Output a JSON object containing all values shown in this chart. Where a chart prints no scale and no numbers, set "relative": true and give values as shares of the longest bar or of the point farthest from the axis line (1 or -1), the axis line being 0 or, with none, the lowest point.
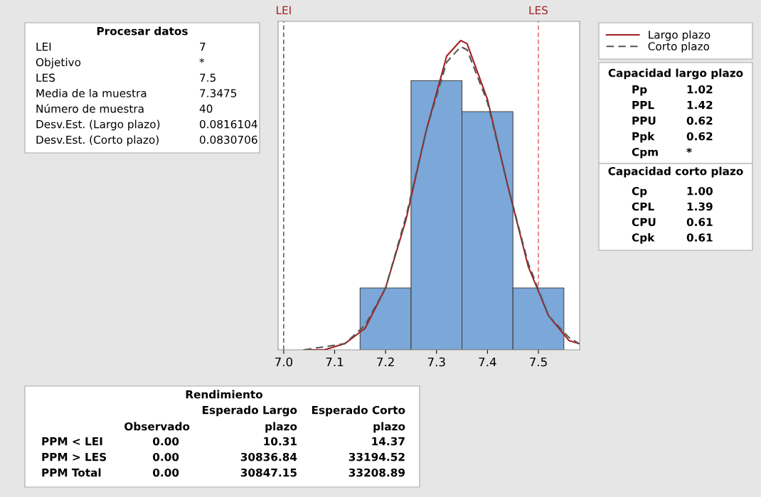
{
  "chart_data": {
    "type": "histogram",
    "bins": [
      7.15,
      7.25,
      7.35,
      7.45,
      7.55
    ],
    "values": [
      0.2,
      0.87,
      0.77,
      0.2
    ],
    "color": "#7ba7d9",
    "relative": true,
    "xlim": [
      6.989,
      7.581
    ],
    "xticks": [
      {
        "value": 7.0,
        "label": "7.0"
      },
      {
        "value": 7.1,
        "label": "7.1"
      },
      {
        "value": 7.2,
        "label": "7.2"
      },
      {
        "value": 7.3,
        "label": "7.3"
      },
      {
        "value": 7.4,
        "label": "7.4"
      },
      {
        "value": 7.5,
        "label": "7.5"
      }
    ],
    "tick_labels": "x",
    "grid": false,
    "legend": "top right",
    "series": [
      {
        "name": "Largo plazo",
        "type": "line",
        "color": "#a3201f",
        "line_style": "solid",
        "x": [
          7.04,
          7.08,
          7.12,
          7.16,
          7.2,
          7.24,
          7.28,
          7.32,
          7.3475,
          7.36,
          7.4,
          7.44,
          7.48,
          7.52,
          7.56,
          7.58
        ],
        "values": [
          0.0,
          0.0,
          0.02,
          0.07,
          0.2,
          0.42,
          0.71,
          0.95,
          1.0,
          0.99,
          0.81,
          0.53,
          0.27,
          0.11,
          0.03,
          0.02
        ]
      },
      {
        "name": "Corto plazo",
        "type": "line",
        "color": "#555555",
        "line_style": "dashed",
        "x": [
          7.04,
          7.08,
          7.12,
          7.16,
          7.2,
          7.24,
          7.28,
          7.32,
          7.3475,
          7.36,
          7.4,
          7.44,
          7.48,
          7.52,
          7.56,
          7.58
        ],
        "values": [
          0.0,
          0.01,
          0.02,
          0.08,
          0.2,
          0.43,
          0.71,
          0.93,
          0.98,
          0.97,
          0.8,
          0.53,
          0.28,
          0.11,
          0.04,
          0.02
        ]
      }
    ],
    "ref_lines": [
      {
        "axis": "x",
        "value": 7.0,
        "label": "LEI",
        "color": "#333333",
        "line_style": "dashed"
      },
      {
        "axis": "x",
        "value": 7.5,
        "label": "LES",
        "color": "#e0474c",
        "line_style": "dashed"
      }
    ],
    "annotations": [
      "Procesar datos",
      "LEI",
      "7",
      "Objetivo",
      "*",
      "LES",
      "7.5",
      "Media de la muestra",
      "7.3475",
      "Número de muestra",
      "40",
      "Desv.Est. (Largo plazo)",
      "0.0816104",
      "Desv.Est. (Corto plazo)",
      "0.0830706",
      "Capacidad largo plazo",
      "Pp",
      "1.02",
      "PPL",
      "1.42",
      "PPU",
      "0.62",
      "Ppk",
      "0.62",
      "Cpm",
      "*",
      "Capacidad corto plazo",
      "Cp",
      "1.00",
      "CPL",
      "1.39",
      "CPU",
      "0.61",
      "Cpk",
      "0.61",
      "Rendimiento",
      "Esperado Largo",
      "Esperado Corto",
      "Observado",
      "plazo",
      "plazo",
      "PPM < LEI",
      "0.00",
      "10.31",
      "14.37",
      "PPM > LES",
      "0.00",
      "30836.84",
      "33194.52",
      "PPM Total",
      "0.00",
      "30847.15",
      "33208.89"
    ]
  }
}
